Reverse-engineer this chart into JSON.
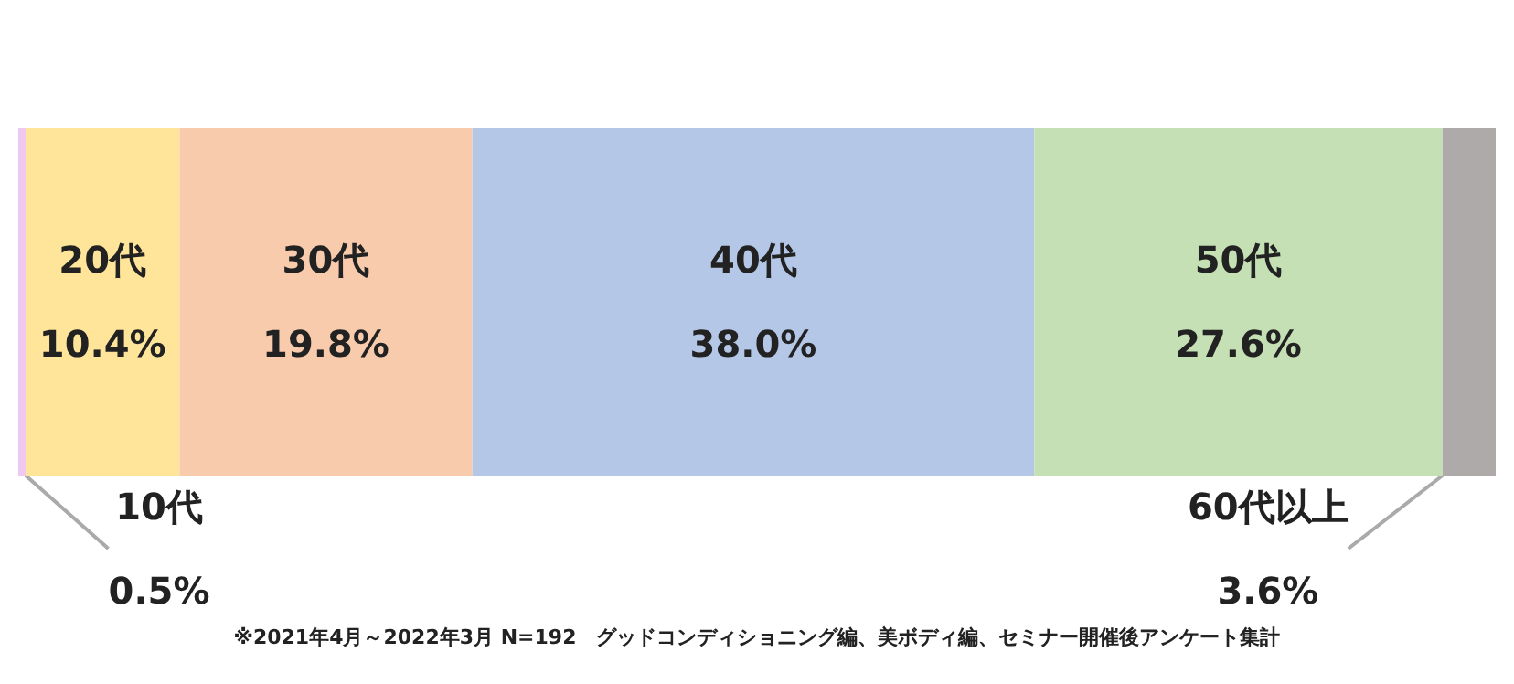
{
  "chart_data": {
    "type": "bar",
    "stacked": true,
    "orientation": "horizontal",
    "categories": [
      null
    ],
    "xlim": [
      0,
      99.9
    ],
    "tick_labels": false,
    "legend": false,
    "series": [
      {
        "name": "10代",
        "color": "#efc9ef",
        "values": [
          0.5
        ],
        "value_labels": [
          "0.5%"
        ]
      },
      {
        "name": "20代",
        "color": "#fee599",
        "values": [
          10.4
        ],
        "value_labels": [
          "10.4%"
        ]
      },
      {
        "name": "30代",
        "color": "#f8cbad",
        "values": [
          19.8
        ],
        "value_labels": [
          "19.8%"
        ]
      },
      {
        "name": "40代",
        "color": "#b4c7e7",
        "values": [
          38.0
        ],
        "value_labels": [
          "38.0%"
        ]
      },
      {
        "name": "50代",
        "color": "#c5e0b4",
        "values": [
          27.6
        ],
        "value_labels": [
          "27.6%"
        ]
      },
      {
        "name": "60代以上",
        "color": "#aeaaaa",
        "values": [
          3.6
        ],
        "value_labels": [
          "3.6%"
        ]
      }
    ],
    "annotations": [
      "※2021年4月～2022年3月 N=192　グッドコンディショニング編、美ボディ編、セミナー開催後アンケート集計"
    ]
  }
}
